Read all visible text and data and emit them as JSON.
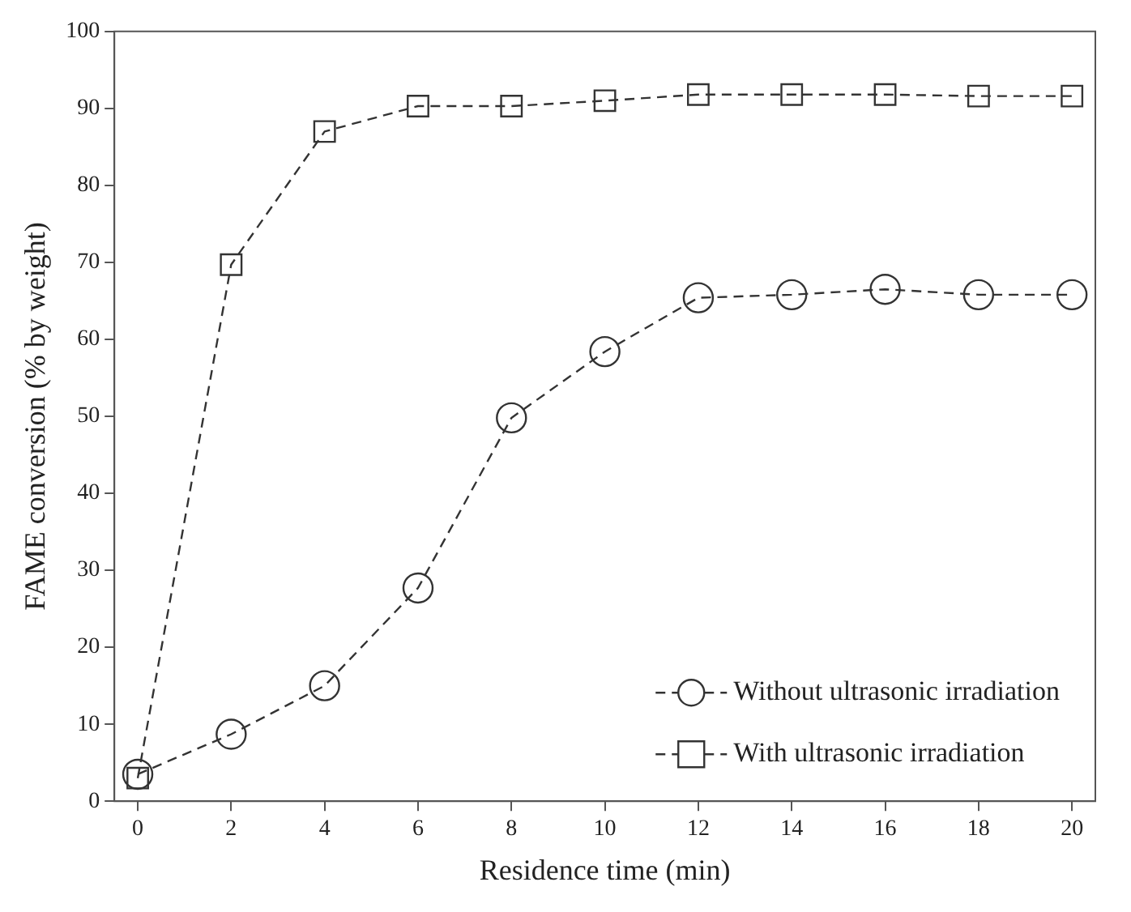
{
  "chart_data": {
    "type": "line",
    "xlabel": "Residence time (min)",
    "ylabel": "FAME conversion (% by weight)",
    "x": [
      0,
      2,
      4,
      6,
      8,
      10,
      12,
      14,
      16,
      18,
      20
    ],
    "series": [
      {
        "name": "Without ultrasonic irradiation",
        "color": "#333333",
        "marker": "circle",
        "values": [
          3.5,
          8.7,
          15,
          27.7,
          49.8,
          58.4,
          65.4,
          65.8,
          66.5,
          65.8,
          65.8
        ]
      },
      {
        "name": "With ultrasonic irradiation",
        "color": "#333333",
        "marker": "square",
        "values": [
          3,
          69.7,
          87,
          90.3,
          90.3,
          91,
          91.8,
          91.8,
          91.8,
          91.6,
          91.6
        ]
      }
    ],
    "xlim": [
      -0.5,
      20.5
    ],
    "xticks": [
      0,
      2,
      4,
      6,
      8,
      10,
      12,
      14,
      16,
      18,
      20
    ],
    "ylim": [
      0,
      100
    ],
    "yticks": [
      0,
      10,
      20,
      30,
      40,
      50,
      60,
      70,
      80,
      90,
      100
    ],
    "grid": false,
    "legend": "bottom right",
    "line_style": "dashed"
  }
}
